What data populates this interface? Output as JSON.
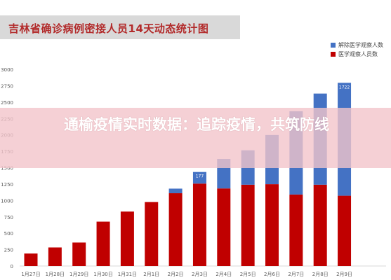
{
  "title": "吉林省确诊病例密接人员14天动态统计图",
  "banner": "通榆疫情实时数据：追踪疫情，共筑防线",
  "colors": {
    "released": "#4472c4",
    "observed": "#c00000",
    "axis": "#d9d9d9",
    "text": "#595959"
  },
  "chart_data": {
    "type": "bar",
    "stacked": true,
    "categories": [
      "1月27日",
      "1月28日",
      "1月29日",
      "1月30日",
      "1月31日",
      "2月1日",
      "2月2日",
      "2月3日",
      "2月4日",
      "2月5日",
      "2月6日",
      "2月7日",
      "2月8日",
      "2月9日"
    ],
    "series": [
      {
        "name": "医学观察人员数",
        "values": [
          190,
          283,
          358,
          677,
          830,
          975,
          1110,
          1257,
          1183,
          1240,
          1248,
          1090,
          1240,
          1072
        ]
      },
      {
        "name": "解除医学观察人数",
        "values": [
          0,
          0,
          0,
          0,
          0,
          0,
          70,
          177,
          450,
          525,
          750,
          1270,
          1390,
          1722
        ]
      }
    ],
    "data_labels": [
      {
        "series": "解除医学观察人数",
        "category": "2月3日",
        "text": "177"
      },
      {
        "series": "解除医学观察人数",
        "category": "2月9日",
        "text": "1722"
      }
    ],
    "yticks": [
      "0",
      "250",
      "500",
      "750",
      "1000",
      "1250",
      "1500",
      "1750",
      "2000",
      "2250",
      "2500",
      "2750",
      "3000"
    ],
    "ylim": [
      0,
      3000
    ],
    "grid": false,
    "legend": "top-right"
  }
}
